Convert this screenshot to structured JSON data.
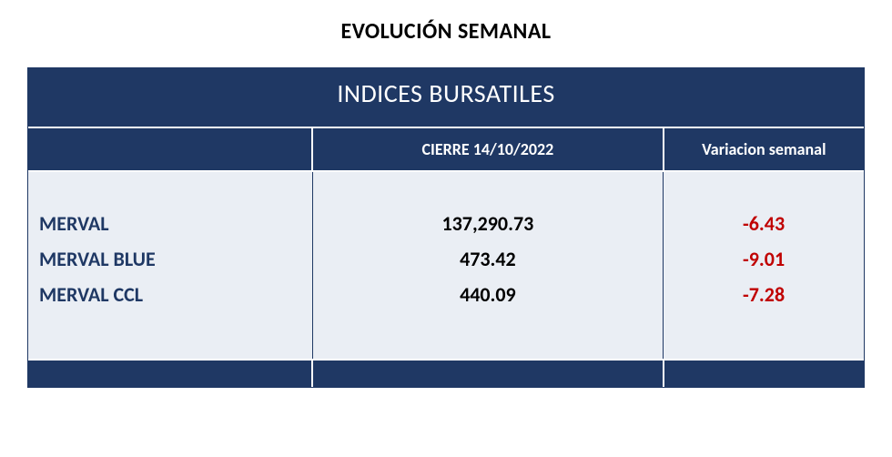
{
  "page_title": "EVOLUCIÓN SEMANAL",
  "table": {
    "title": "INDICES BURSATILES",
    "columns": [
      "",
      "CIERRE 14/10/2022",
      "Variacion semanal"
    ],
    "rows": [
      {
        "label": "MERVAL",
        "close": "137,290.73",
        "variation": "-6.43",
        "variation_sign": "negative"
      },
      {
        "label": "MERVAL BLUE",
        "close": "473.42",
        "variation": "-9.01",
        "variation_sign": "negative"
      },
      {
        "label": "MERVAL CCL",
        "close": "440.09",
        "variation": "-7.28",
        "variation_sign": "negative"
      }
    ],
    "colors": {
      "header_bg": "#1f3864",
      "header_text": "#ffffff",
      "row_bg": "#eaeef4",
      "label_text": "#1f3864",
      "value_text": "#000000",
      "negative": "#c00000",
      "positive": "#00b050",
      "border": "#1f3864"
    },
    "fonts": {
      "page_title_size": 24,
      "table_title_size": 28,
      "header_size": 18,
      "cell_size": 22
    }
  }
}
